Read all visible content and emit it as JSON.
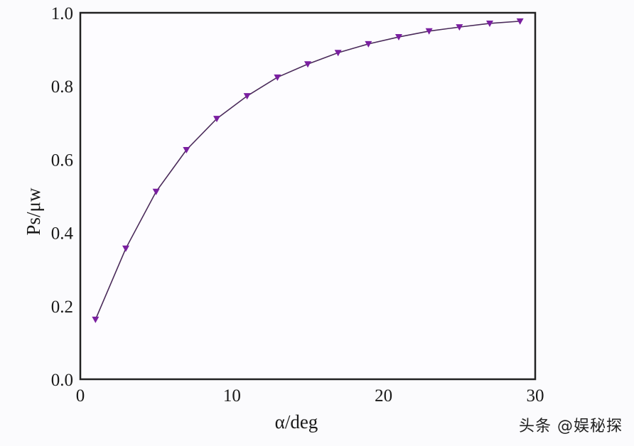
{
  "chart_data": {
    "type": "line",
    "title": "",
    "xlabel": "α/deg",
    "ylabel": "Ps/μw",
    "xlim": [
      0,
      30
    ],
    "ylim": [
      0.0,
      1.0
    ],
    "xticks": [
      "0",
      "10",
      "20",
      "30"
    ],
    "yticks": [
      "0.0",
      "0.2",
      "0.4",
      "0.6",
      "0.8",
      "1.0"
    ],
    "grid": false,
    "legend": null,
    "series": [
      {
        "name": "Ps",
        "color": "#7a1fa0",
        "line_color": "#4a2a5a",
        "marker": "triangle-down",
        "x": [
          1,
          3,
          5,
          7,
          9,
          11,
          13,
          15,
          17,
          19,
          21,
          23,
          25,
          27,
          29
        ],
        "y": [
          0.163,
          0.357,
          0.512,
          0.626,
          0.711,
          0.773,
          0.824,
          0.86,
          0.891,
          0.915,
          0.934,
          0.95,
          0.961,
          0.971,
          0.977
        ]
      }
    ]
  },
  "labels": {
    "x_axis": "α/deg",
    "y_axis": "Ps/μw",
    "x_ticks": [
      "0",
      "10",
      "20",
      "30"
    ],
    "y_ticks": [
      "0.0",
      "0.2",
      "0.4",
      "0.6",
      "0.8",
      "1.0"
    ]
  },
  "watermark": "头条 @娱秘探"
}
